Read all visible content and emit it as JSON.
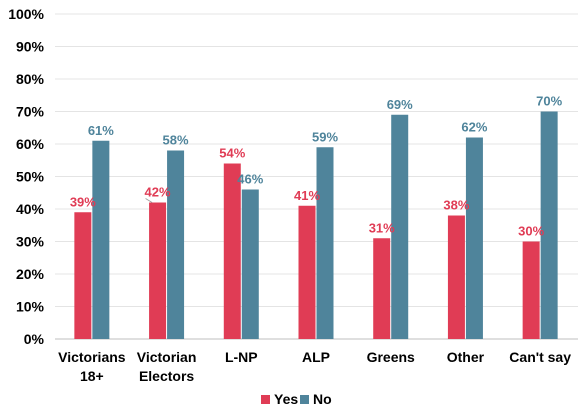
{
  "chart_data": {
    "type": "bar",
    "categories": [
      [
        "Victorians",
        "18+"
      ],
      [
        "Victorian",
        "Electors"
      ],
      [
        "L-NP"
      ],
      [
        "ALP"
      ],
      [
        "Greens"
      ],
      [
        "Other"
      ],
      [
        "Can't say"
      ]
    ],
    "series": [
      {
        "name": "Yes",
        "color": "#e03c55",
        "values": [
          39,
          42,
          54,
          41,
          31,
          38,
          30
        ],
        "labels": [
          "39%",
          "42%",
          "54%",
          "41%",
          "31%",
          "38%",
          "30%"
        ]
      },
      {
        "name": "No",
        "color": "#4f849b",
        "values": [
          61,
          58,
          46,
          59,
          69,
          62,
          70
        ],
        "labels": [
          "61%",
          "58%",
          "46%",
          "59%",
          "69%",
          "62%",
          "70%"
        ]
      }
    ],
    "ylim": [
      0,
      100
    ],
    "yticks": [
      "0%",
      "10%",
      "20%",
      "30%",
      "40%",
      "50%",
      "60%",
      "70%",
      "80%",
      "90%",
      "100%"
    ],
    "grid": true,
    "legend_position": "bottom",
    "xlabel": "",
    "ylabel": "",
    "title": ""
  }
}
